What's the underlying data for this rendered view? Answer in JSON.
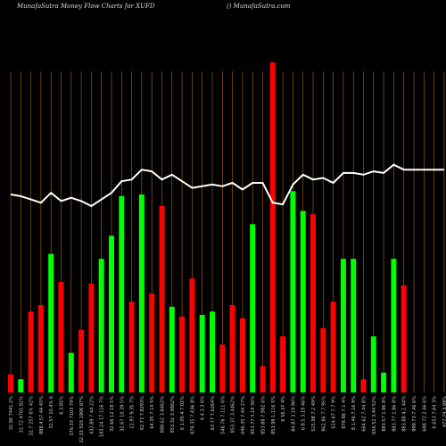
{
  "header": {
    "title": "MunafaSutra  Money Flow  Charts for XUFD",
    "credit": "() MunafaSutra.com"
  },
  "chart_data": {
    "type": "bar",
    "title": "MunafaSutra  Money Flow  Charts for XUFD",
    "xlabel": "",
    "ylabel": "",
    "grid": "vertical",
    "colors": {
      "up": "#00ff00",
      "down": "#ff0000",
      "line": "#ffffff",
      "grid": "#b06a1e",
      "background": "#000000"
    },
    "ylim": [
      0,
      100
    ],
    "categories": [
      "32.96 7441.2%",
      "32.72 4765 82%",
      "32.7 257 6% 42%",
      "888.4 57.44 45%",
      "32.57 10.4% 6",
      "6 3.85%",
      "376.33 7103 79%",
      "32.33 503 1906 87%",
      "432.89 7 44 22%",
      "183.24 17.116 7%",
      "32.66 12 18 5%",
      "32.67 10 39 5%",
      "22.97 9.35 7%",
      "62.73 7.8293%",
      "64.35 7.14 5%",
      "888.62 3.8462%",
      "853.32 3.9862%",
      "6 1.05 4 7.02%",
      "878.35 7.436 8%",
      "6 4.3.3 6%",
      "63.77 7.6264%",
      "546.76 7.111 6%",
      "853.37 3.4462%",
      "646.35 7.44 27%",
      "853.77 3.19 36%",
      "853.88 7.982 6%",
      "853.98 1.116 5%",
      "6 56.37 4%",
      "84.87 3.19 90%",
      "6 8.5 3.19 46%",
      "515.98 7.2 49%",
      "862.86 7.7 95%",
      "624.67 7.7 9%",
      "878.86 7.1 4%",
      "8 1.46 7.16 9%",
      "664.62 7.44 8%",
      "656.52 3.44 52%",
      "883.57 1.96 8%",
      "883.77 1.96 8%",
      "883.88 4.1 44%",
      "999.73 7.46 6%",
      "688.72 2.46 6%",
      "6 653 7.64 3%",
      "477.74 3.98%"
    ],
    "series": [
      {
        "role": "money-flow-bars",
        "values": [
          5.5,
          4,
          24.5,
          26.5,
          42,
          33.5,
          12,
          19,
          33,
          40.5,
          47.5,
          59.5,
          27.5,
          60,
          30,
          56.5,
          26,
          23,
          34.5,
          23.5,
          24.5,
          14.5,
          26.5,
          22.5,
          51,
          8,
          100,
          17,
          61,
          55,
          54,
          19.5,
          27.5,
          40.5,
          40.5,
          4,
          17,
          6,
          40.5,
          32.5,
          0,
          0,
          0,
          0
        ],
        "directions": [
          "down",
          "up",
          "down",
          "down",
          "up",
          "down",
          "up",
          "down",
          "down",
          "up",
          "up",
          "up",
          "down",
          "up",
          "down",
          "down",
          "up",
          "down",
          "down",
          "up",
          "up",
          "down",
          "down",
          "down",
          "up",
          "down",
          "down",
          "down",
          "up",
          "up",
          "down",
          "down",
          "down",
          "up",
          "up",
          "down",
          "up",
          "up",
          "up",
          "down",
          "up",
          "up",
          "up",
          "up"
        ]
      },
      {
        "role": "price-line",
        "values": [
          60,
          59.5,
          58.5,
          57.5,
          60.5,
          58,
          59,
          58,
          56.5,
          58.5,
          60.5,
          64,
          64.5,
          67.5,
          67,
          64.5,
          66,
          64,
          62,
          62.5,
          63,
          62.5,
          63.5,
          61.5,
          63.5,
          63.5,
          57.5,
          57,
          63,
          66,
          64.5,
          65,
          63.5,
          66.5,
          66.5,
          66,
          67,
          66.5,
          69,
          67.5,
          67.5,
          67.5,
          67.5,
          67.5
        ]
      }
    ]
  }
}
